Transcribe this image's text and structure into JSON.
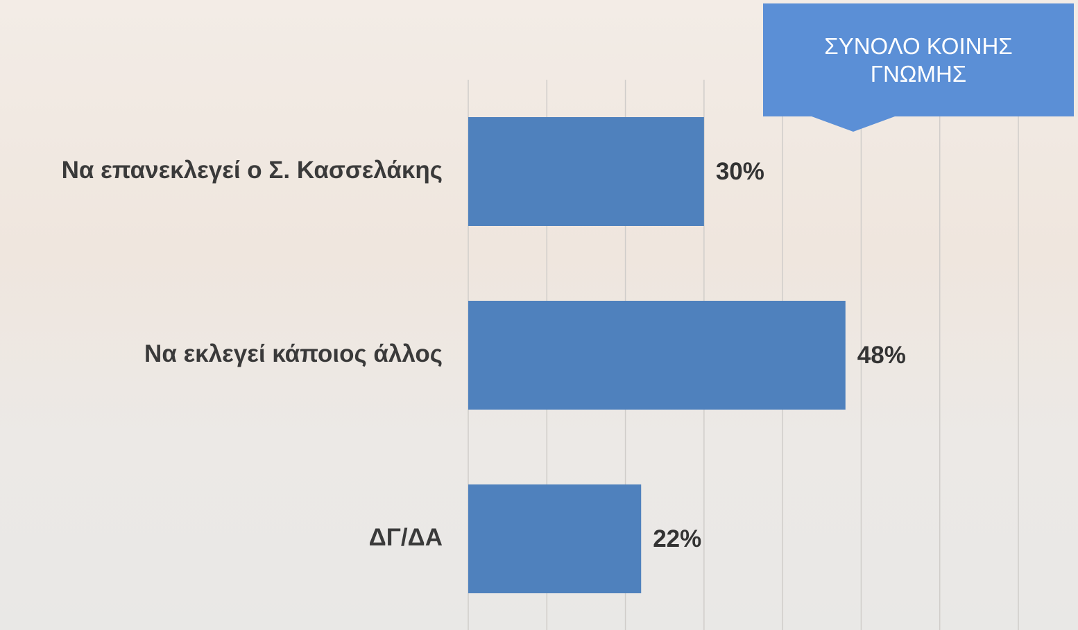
{
  "chart_data": {
    "type": "bar",
    "orientation": "horizontal",
    "title": "ΣΥΝΟΛΟ ΚΟΙΝΗΣ ΓΝΩΜΗΣ",
    "categories": [
      "Να επανεκλεγεί ο Σ. Κασσελάκης",
      "Να εκλεγεί κάποιος άλλος",
      "ΔΓ/ΔΑ"
    ],
    "values": [
      30,
      48,
      22
    ],
    "value_labels": [
      "30%",
      "48%",
      "22%"
    ],
    "color": "#4f81bd",
    "xlim": [
      0,
      70
    ],
    "xticks": [
      0,
      10,
      20,
      30,
      40,
      50,
      60,
      70
    ],
    "grid": true
  }
}
